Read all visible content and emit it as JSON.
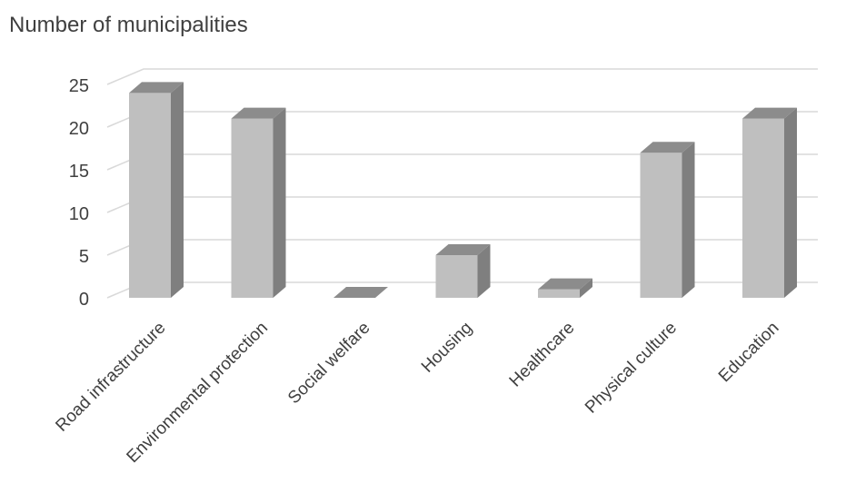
{
  "chart_data": {
    "type": "bar",
    "title": "Number of municipalities",
    "categories": [
      "Road infrastructure",
      "Environmental protection",
      "Social welfare",
      "Housing",
      "Healthcare",
      "Physical culture",
      "Education"
    ],
    "values": [
      24,
      21,
      0,
      5,
      1,
      17,
      21
    ],
    "ylim": [
      0,
      25
    ],
    "yticks": [
      0,
      5,
      10,
      15,
      20,
      25
    ],
    "grid": true,
    "legend": "none",
    "style": "3d-column",
    "colors": {
      "bar_front": "#bfbfbf",
      "bar_side": "#7f7f7f",
      "bar_top": "#8c8c8c",
      "grid": "#d9d9d9"
    }
  }
}
